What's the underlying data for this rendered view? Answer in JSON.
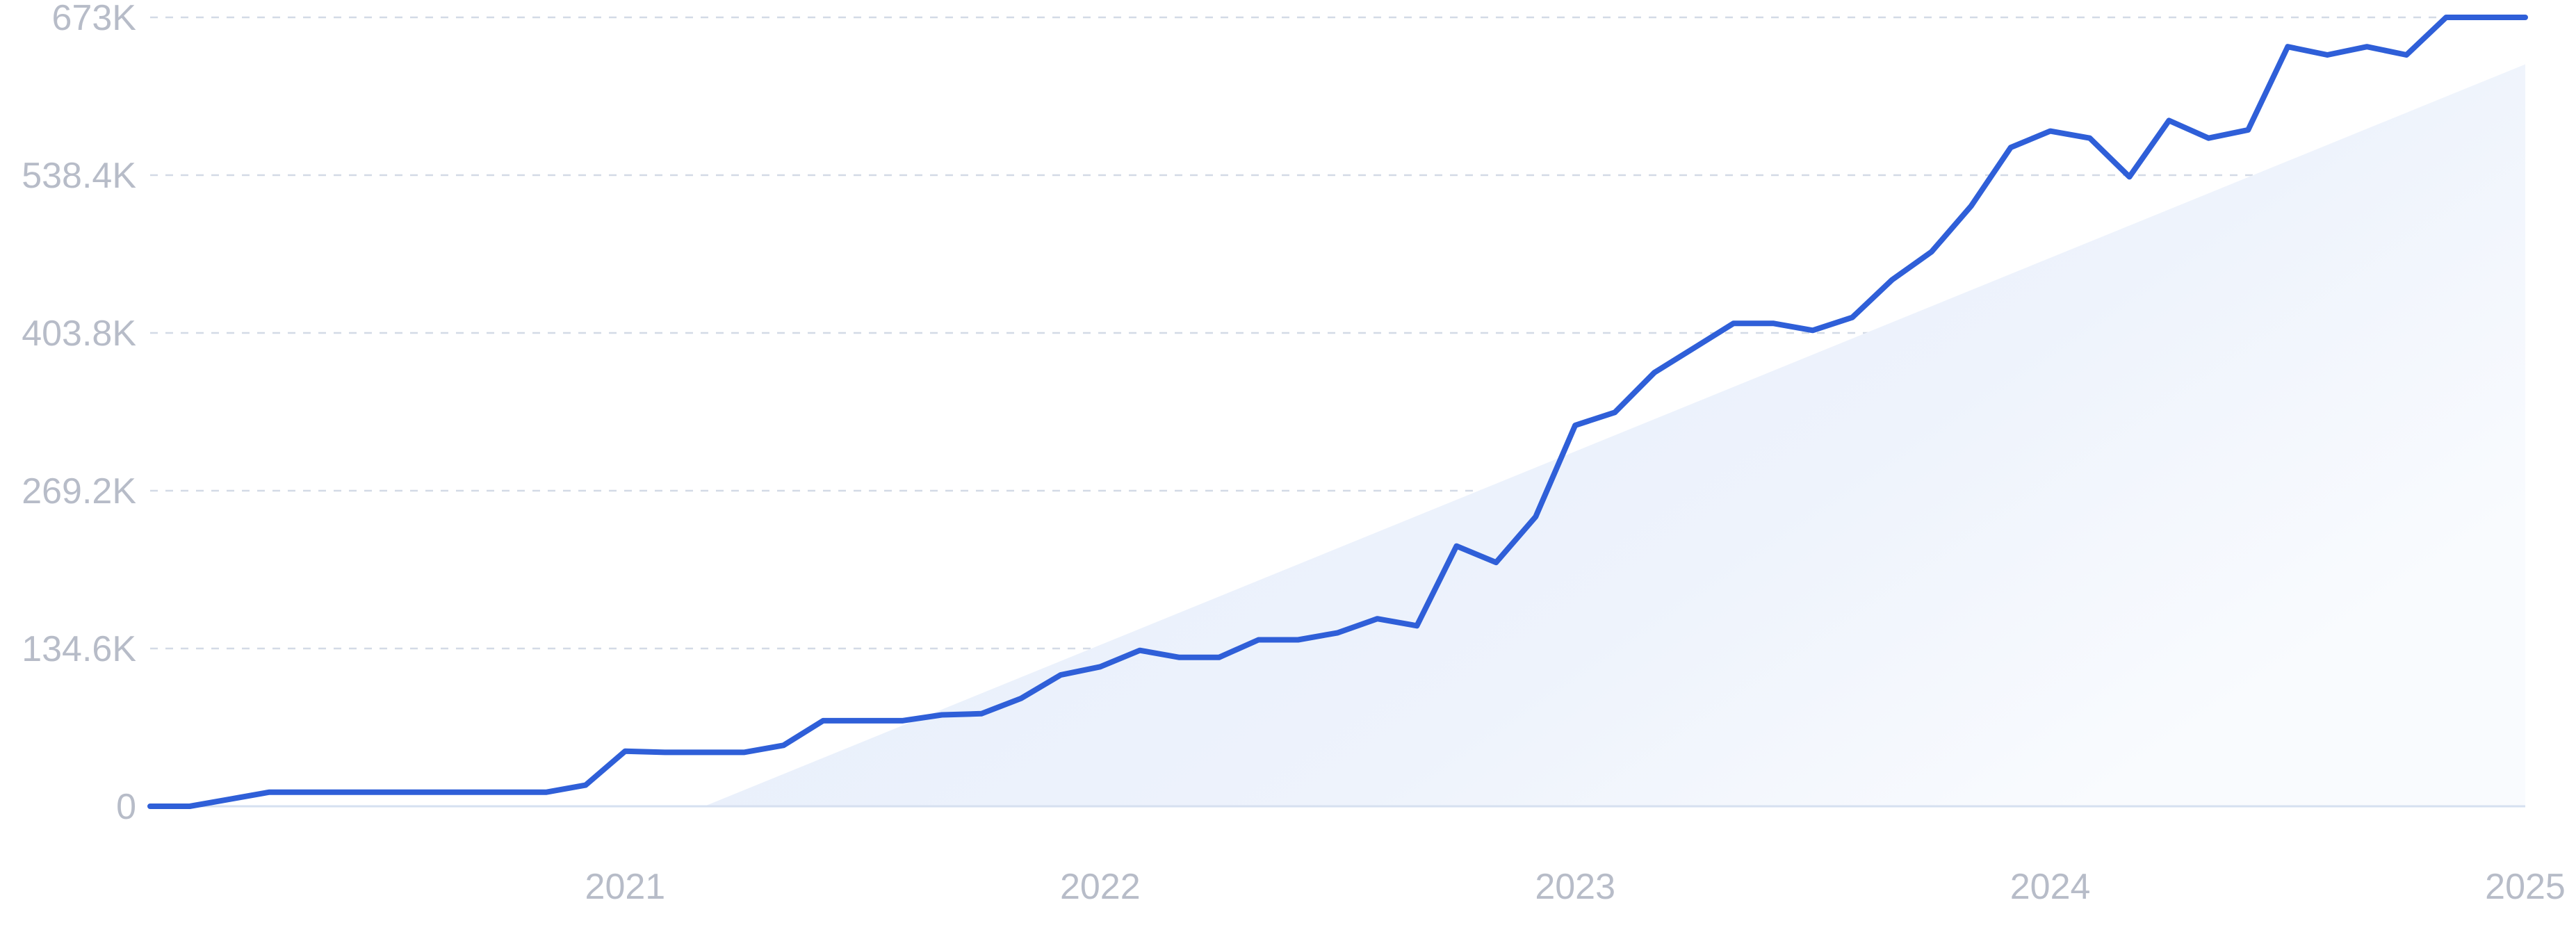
{
  "chart_data": {
    "type": "line",
    "title": "",
    "xlabel": "",
    "ylabel": "",
    "x_ticks": [
      "2021",
      "2022",
      "2023",
      "2024",
      "2025"
    ],
    "y_ticks": [
      "0",
      "134.6K",
      "269.2K",
      "403.8K",
      "538.4K",
      "673K"
    ],
    "xlim": [
      "2020-01",
      "2025-01"
    ],
    "ylim": [
      0,
      673000
    ],
    "grid": true,
    "trend": {
      "start": [
        "2021-03",
        0
      ],
      "end": [
        "2025-01",
        633000
      ]
    },
    "series": [
      {
        "x": [
          "2020-01",
          "2020-02",
          "2020-03",
          "2020-04",
          "2020-05",
          "2020-06",
          "2020-07",
          "2020-08",
          "2020-09",
          "2020-10",
          "2020-11",
          "2020-12",
          "2021-01",
          "2021-02",
          "2021-03",
          "2021-04",
          "2021-05",
          "2021-06",
          "2021-07",
          "2021-08",
          "2021-09",
          "2021-10",
          "2021-11",
          "2021-12",
          "2022-01",
          "2022-02",
          "2022-03",
          "2022-04",
          "2022-05",
          "2022-06",
          "2022-07",
          "2022-08",
          "2022-09",
          "2022-10",
          "2022-11",
          "2022-12",
          "2023-01",
          "2023-02",
          "2023-03",
          "2023-04",
          "2023-05",
          "2023-06",
          "2023-07",
          "2023-08",
          "2023-09",
          "2023-10",
          "2023-11",
          "2023-12",
          "2024-01",
          "2024-02",
          "2024-03",
          "2024-04",
          "2024-05",
          "2024-06",
          "2024-07",
          "2024-08",
          "2024-09",
          "2024-10",
          "2024-11",
          "2024-12",
          "2025-01"
        ],
        "values": [
          0,
          0,
          6000,
          12000,
          12000,
          12000,
          12000,
          12000,
          12000,
          12000,
          12000,
          18000,
          47000,
          46000,
          46000,
          46000,
          52000,
          73000,
          73000,
          73000,
          78000,
          79000,
          92000,
          112000,
          119000,
          133000,
          127000,
          127000,
          142000,
          142000,
          148000,
          160000,
          154000,
          222000,
          208000,
          247000,
          325000,
          336000,
          370000,
          391000,
          412000,
          412000,
          406000,
          417000,
          449000,
          473000,
          512000,
          562000,
          576000,
          570000,
          537000,
          585000,
          570000,
          577000,
          648000,
          641000,
          648000,
          641000,
          673000,
          673000,
          673000
        ],
        "color": "#2f5fd8"
      }
    ]
  }
}
